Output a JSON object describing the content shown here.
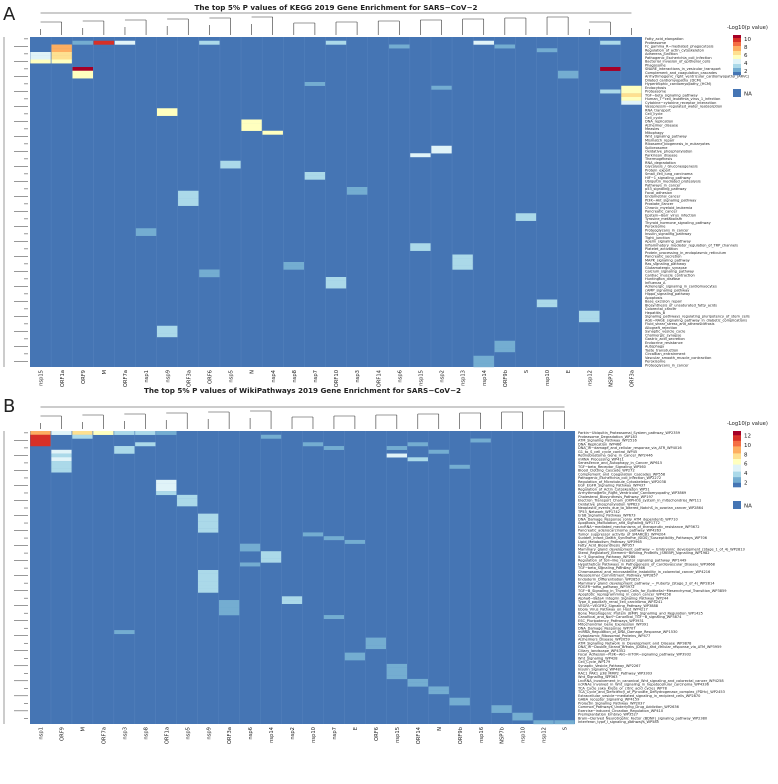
{
  "chart_data": [
    {
      "type": "heatmap",
      "panel": "A",
      "title": "The top 5% P values of KEGG 2019 Gene Enrichment for SARS−CoV−2",
      "columns": [
        "nsp15",
        "ORF1a",
        "ORF9",
        "M",
        "ORF7a",
        "nsp1",
        "nsp9",
        "ORF3a",
        "ORF6",
        "nsp5",
        "N",
        "nsp4",
        "nsp8",
        "nsp7",
        "ORF10",
        "nsp3",
        "ORF14",
        "nsp6",
        "nsp15",
        "nsp2",
        "nsp13",
        "nsp14",
        "ORF9b",
        "S",
        "nsp10",
        "E",
        "nsp12",
        "NSP7b",
        "ORF3a"
      ],
      "rows": [
        "Fatty_acid_elongation",
        "Proteasome",
        "Fc_gamma_R−mediated_phagocytosis",
        "Regulation_of_actin_cytoskeleton",
        "Adherens_junction",
        "Pathogenic_Escherichia_coli_infection",
        "Bacterial_invasion_of_epithelial_cells",
        "Phagosome",
        "SNARE_interactions_in_vesicular_transport",
        "Complement_and_coagulation_cascades",
        "Arrhythmogenic_right_ventricular_cardiomyopathy_(ARVC)",
        "Dilated_cardiomyopathy_(DCM)",
        "Hypertrophic_cardiomyopathy_(HCM)",
        "Endocytosis",
        "Proteasome",
        "TGF−beta_signaling_pathway",
        "Human_T−cell_leukemia_virus_1_infection",
        "Cytokine−cytokine_receptor_interaction",
        "Vasopressin−regulated_water_reabsorption",
        "RNA_transport",
        "Cell_cycle",
        "Cell_cycle",
        "DNA_replication",
        "Alzheimer_disease",
        "Measles",
        "Mitophagy",
        "Wnt_signaling_pathway",
        "Mismatch_repair",
        "Ribosome_biogenesis_in_eukaryotes",
        "Spliceosome",
        "Oxidative_phosphorylation",
        "Parkinson_disease",
        "Thermogenesis",
        "RNA_degradation",
        "Glycolysis_/_Gluconeogenesis",
        "Protein_export",
        "Small_cell_lung_carcinoma",
        "HIF−1_signaling_pathway",
        "Ubiquitin_mediated_proteolysis",
        "Pathways_in_cancer",
        "p53_signaling_pathway",
        "Focal_adhesion",
        "Endometrial_cancer",
        "PI3K−Akt_signaling_pathway",
        "Prostate_cancer",
        "Chronic_myeloid_leukemia",
        "Pancreatic_cancer",
        "Epstein−Barr_virus_infection",
        "Tyrosine_metabolism",
        "Thyroid_hormone_signaling_pathway",
        "Peroxisome",
        "Proteoglycans_in_cancer",
        "Insulin_signaling_pathway",
        "Tight_junction",
        "Apelin_signaling_pathway",
        "Inflammatory_mediator_regulation_of_TRP_channels",
        "Platelet_activation",
        "Protein_processing_in_endoplasmic_reticulum",
        "Pancreatic_secretion",
        "MAPK_signaling_pathway",
        "Ras_signaling_pathway",
        "Glutamatergic_synapse",
        "Calcium_signaling_pathway",
        "Cardiac_muscle_contraction",
        "Huntington_disease",
        "Influenza_A",
        "Adrenergic_signaling_in_cardiomyocytes",
        "cAMP_signaling_pathway",
        "Hippo_signaling_pathway",
        "Apoptosis",
        "Base_excision_repair",
        "Biosynthesis_of_unsaturated_fatty_acids",
        "Colorectal_cancer",
        "Hepatitis_B",
        "Signaling_pathways_regulating_pluripotency_of_stem_cells",
        "AGE−RAGE_signaling_pathway_in_diabetic_complications",
        "Fluid_shear_stress_and_atherosclerosis",
        "Allograft_rejection",
        "Synaptic_vesicle_cycle",
        "Cholinergic_synapse",
        "Gastric_acid_secretion",
        "Endocrine_resistance",
        "Autophagy",
        "Taste_transduction",
        "Circadian_entrainment",
        "Vascular_smooth_muscle_contraction",
        "Peroxisome",
        "Proteoglycans_in_cancer"
      ],
      "cells": [
        [
          0,
          3,
          1.5
        ],
        [
          1,
          3,
          1.5
        ],
        [
          2,
          3,
          1.5
        ],
        [
          3,
          3,
          1.5
        ],
        [
          2,
          1,
          8
        ],
        [
          3,
          1,
          8
        ],
        [
          4,
          1,
          7
        ],
        [
          5,
          1,
          6
        ],
        [
          6,
          1,
          5
        ],
        [
          4,
          0,
          4
        ],
        [
          5,
          0,
          4
        ],
        [
          6,
          0,
          5
        ],
        [
          1,
          3,
          10
        ],
        [
          1,
          4,
          4
        ],
        [
          1,
          2,
          2
        ],
        [
          1,
          8,
          3
        ],
        [
          1,
          14,
          3
        ],
        [
          1,
          21,
          4
        ],
        [
          1,
          27,
          3
        ],
        [
          8,
          2,
          11
        ],
        [
          9,
          2,
          5
        ],
        [
          10,
          2,
          5
        ],
        [
          8,
          27,
          11
        ],
        [
          9,
          25,
          2
        ],
        [
          10,
          25,
          2
        ],
        [
          13,
          28,
          5
        ],
        [
          14,
          28,
          5
        ],
        [
          15,
          28,
          6
        ],
        [
          16,
          28,
          5
        ],
        [
          17,
          28,
          4
        ],
        [
          14,
          27,
          3
        ],
        [
          19,
          6,
          5
        ],
        [
          20,
          6,
          5
        ],
        [
          22,
          10,
          5
        ],
        [
          23,
          10,
          5
        ],
        [
          24,
          10,
          5
        ],
        [
          25,
          11,
          5
        ],
        [
          29,
          19,
          4
        ],
        [
          30,
          19,
          4
        ],
        [
          31,
          18,
          4
        ],
        [
          33,
          9,
          3
        ],
        [
          34,
          9,
          3
        ],
        [
          36,
          13,
          3
        ],
        [
          37,
          13,
          3
        ],
        [
          41,
          7,
          3
        ],
        [
          42,
          7,
          3
        ],
        [
          43,
          7,
          3
        ],
        [
          44,
          7,
          3
        ],
        [
          47,
          23,
          3
        ],
        [
          48,
          23,
          3
        ],
        [
          51,
          5,
          2
        ],
        [
          52,
          5,
          2
        ],
        [
          55,
          18,
          3
        ],
        [
          56,
          18,
          3
        ],
        [
          58,
          20,
          3
        ],
        [
          59,
          20,
          3
        ],
        [
          60,
          20,
          3
        ],
        [
          61,
          20,
          3
        ],
        [
          64,
          14,
          3
        ],
        [
          65,
          14,
          3
        ],
        [
          66,
          14,
          3
        ],
        [
          70,
          24,
          3
        ],
        [
          71,
          24,
          3
        ],
        [
          73,
          26,
          3
        ],
        [
          74,
          26,
          3
        ],
        [
          75,
          26,
          3
        ],
        [
          77,
          6,
          3
        ],
        [
          78,
          6,
          3
        ],
        [
          79,
          6,
          3
        ],
        [
          81,
          22,
          2
        ],
        [
          82,
          22,
          2
        ],
        [
          83,
          22,
          2
        ],
        [
          85,
          21,
          2
        ],
        [
          86,
          21,
          2
        ],
        [
          87,
          21,
          2
        ],
        [
          60,
          12,
          2
        ],
        [
          61,
          12,
          2
        ],
        [
          40,
          15,
          2
        ],
        [
          41,
          15,
          2
        ],
        [
          12,
          13,
          2
        ],
        [
          13,
          19,
          2
        ],
        [
          2,
          17,
          2
        ],
        [
          2,
          22,
          2
        ],
        [
          3,
          24,
          2
        ],
        [
          62,
          8,
          2
        ],
        [
          63,
          8,
          2
        ]
      ],
      "legend_title": "-Log10(p value)",
      "legend_ticks": [
        "10",
        "8",
        "6",
        "4",
        "2"
      ],
      "legend_na": "NA"
    },
    {
      "type": "heatmap",
      "panel": "B",
      "title": "The top 5% P values of WikiPathways 2019 Gene Enrichment for SARS−CoV−2",
      "columns": [
        "nsp1",
        "ORF9",
        "M",
        "ORF7a",
        "nsp3",
        "nsp8",
        "ORF1a",
        "nsp5",
        "nsp9",
        "ORF3a",
        "nsp6",
        "nsp14",
        "nsp2",
        "nsp10",
        "nsp7",
        "E",
        "ORF6",
        "nsp15",
        "ORF14",
        "N",
        "ORF9b",
        "nsp16",
        "NSP7b",
        "nsp10",
        "nsp12",
        "S"
      ],
      "rows": [
        "Parkin−Ubiquitin_Proteasomal_System_pathway_WP2359",
        "Proteasome_Degradation_WP183",
        "ATM_Signaling_Pathway_WP2516",
        "DNA_Replication_WP466",
        "DNA_IR−damage_and_cellular_response_via_ATR_WP4016",
        "G1_to_S_cell_cycle_control_WP45",
        "Retinoblastoma_Gene_in_Cancer_WP2446",
        "mRNA_Processing_WP411",
        "Senescence_and_Autophagy_in_Cancer_WP615",
        "TGF−beta_Receptor_Signaling_WP560",
        "Blood_Clotting_Cascade_WP272",
        "Complement_and_Coagulation_Cascades_WP558",
        "Pathogenic_Escherichia_coli_infection_WP2272",
        "Regulation_of_Microtubule_Cytoskeleton_WP2038",
        "EGF_EGFR_Signaling_Pathway_WP437",
        "Regulation_of_Actin_Cytoskeleton_WP51",
        "Arrhythmogenic_Right_Ventricular_Cardiomyopathy_WP3869",
        "Cholesterol_Biosynthesis_Pathway_WP197",
        "Electron_Transport_Chain_(OXPHOS_system_in_mitochondria)_WP111",
        "Oxidative_phosphorylation_WP623",
        "Neoplastic_events_due_to_altered_NotchS_in_ovarian_cancer_WP2864",
        "TP53_Network_WP1742",
        "ErbB_Signaling_Pathway_WP673",
        "DNA_Damage_Response_(only_ATM_dependent)_WP710",
        "Apoptosis_Modulation_and_Signaling_WP1772",
        "LncRNA−mediated_mechanisms_of_therapeutic_resistance_WP3672",
        "Pancreatic_adenocarcinoma_pathway_WP4263",
        "Tumor_suppressor_activity_of_SMARCB1_WP4204",
        "Sudden_Infant_Death_Syndrome_(SIDS)_Susceptibility_Pathways_WP706",
        "Lipid_Metabolism_Pathway_WP3965",
        "Fatty_Acid_Biosynthesis_WP357",
        "Mammary_gland_development_pathway_−_Embryonic_development_(Stage_1_of_4)_WP2813",
        "Sterol_Regulatory_Element−Binding_Proteins_(SREBP)_signalling_WP1982",
        "IL−3_Signaling_Pathway_WP286",
        "Regulation_of_toll−like_receptor_signaling_pathway_WP1449",
        "Hypothetical_Pathways_in_Pathogenesis_of_Cardiovascular_Disease_WP3668",
        "TGF−beta_Signaling_Pathway_WP366",
        "Chromosomal_and_microsatellite_instability_in_colorectal_cancer_WP4216",
        "Mesodermal_Commitment_Pathway_WP2857",
        "Endoderm_Differentiation_WP2853",
        "Mammary_gland_development_pathway_−_Puberty_(Stage_2_of_4)_WP2814",
        "PDGFR−beta_pathway_WP3972",
        "TGF−B_Signaling_in_Thyroid_Cells_for_Epithelial−Mesenchymal_Transition_WP3859",
        "Apoptotic_reprogramming_in_colon_cancer_WP4258",
        "Alpha6−Beta4_Integrin_Signaling_Pathway_WP244",
        "Type_II_papillary_renal_cell_carcinoma_WP4241",
        "VEGFA−VEGFR2_Signaling_Pathway_WP3888",
        "Ebola_Virus_Pathway_on_Host_WP4217",
        "Bone_Morphogenic_Protein_(BMP)_Signalling_and_Regulation_WP1425",
        "Canonical_and_Non−Canonical_TGF−B_signaling_WP3874",
        "ESC_Pluripotency_Pathways_WP3931",
        "Mitochondrial_Gene_Expression_WP391",
        "DNA_Damage_Response_WP707",
        "miRNA_Regulation_of_DNA_Damage_Response_WP1530",
        "Cytoplasmic_Ribosomal_Proteins_WP477",
        "Alzheimers_Disease_WP2059",
        "ATM_Signaling_Network_in_Development_and_Disease_WP3878",
        "DNA_IR−Double_Strand_Breaks_(DSBs)_and_cellular_response_via_ATM_WP3959",
        "Ciliary_landscape_WP4352",
        "Focal_Adhesion−PI3K−Akt−mTOR−signaling_pathway_WP3932",
        "Wnt_Signaling_WP428",
        "Cell_Cycle_WP179",
        "Synaptic_Vesicle_Pathway_WP2267",
        "Insulin_Signaling_WP481",
        "RAC1_PAK1_p38_MMP2_Pathway_WP3303",
        "Wnt_Signaling_WP363",
        "LncRNA_involvement_in_canonical_Wnt_signaling_and_colorectal_cancer_WP4258",
        "ncRNAs_involved_in_Wnt_signaling_in_hepatocellular_carcinoma_WP4336",
        "TCA_Cycle_(aka_Krebs_or_citric_acid_cycle)_WP78",
        "TCA_Cycle_and_Deficiency_of_Pyruvate_Dehydrogenase_complex_(PDHc)_WP2453",
        "Extracellular_vesicle−mediated_signaling_in_recipient_cells_WP2870",
        "GABA_receptor_Signaling_WP4159",
        "Prolactin_Signaling_Pathway_WP2037",
        "Common_Pathways_Underlying_Drug_Addiction_WP2636",
        "Exercise−induced_Circadian_Regulation_WP410",
        "Preimplantation_Embryo_WP3527",
        "Brain−Derived_Neurotrophic_Factor_(BDNF)_signaling_pathway_WP2380",
        "Interferon_type_I_signaling_pathways_WP585"
      ],
      "cells": [
        [
          0,
          0,
          9
        ],
        [
          1,
          0,
          12
        ],
        [
          2,
          0,
          12
        ],
        [
          3,
          0,
          11
        ],
        [
          0,
          1,
          5
        ],
        [
          0,
          2,
          7
        ],
        [
          0,
          3,
          6
        ],
        [
          0,
          4,
          4
        ],
        [
          0,
          5,
          3
        ],
        [
          0,
          6,
          2
        ],
        [
          5,
          1,
          5
        ],
        [
          6,
          1,
          4
        ],
        [
          7,
          1,
          5
        ],
        [
          8,
          1,
          4
        ],
        [
          9,
          1,
          3
        ],
        [
          10,
          1,
          3
        ],
        [
          3,
          5,
          3
        ],
        [
          4,
          4,
          3
        ],
        [
          5,
          4,
          3
        ],
        [
          6,
          17,
          5
        ],
        [
          7,
          18,
          4
        ],
        [
          4,
          17,
          2
        ],
        [
          3,
          18,
          2
        ],
        [
          1,
          2,
          3
        ],
        [
          1,
          11,
          2
        ],
        [
          3,
          13,
          2
        ],
        [
          4,
          14,
          2
        ],
        [
          5,
          19,
          2
        ],
        [
          2,
          21,
          2
        ],
        [
          9,
          20,
          2
        ],
        [
          13,
          6,
          5
        ],
        [
          14,
          6,
          5
        ],
        [
          15,
          6,
          5
        ],
        [
          16,
          6,
          3
        ],
        [
          17,
          7,
          3
        ],
        [
          18,
          7,
          3
        ],
        [
          19,
          7,
          3
        ],
        [
          22,
          8,
          4
        ],
        [
          23,
          8,
          4
        ],
        [
          24,
          8,
          4
        ],
        [
          25,
          8,
          3
        ],
        [
          26,
          8,
          3
        ],
        [
          27,
          13,
          2
        ],
        [
          28,
          14,
          2
        ],
        [
          29,
          15,
          2
        ],
        [
          30,
          10,
          2
        ],
        [
          31,
          10,
          2
        ],
        [
          32,
          11,
          3
        ],
        [
          33,
          11,
          3
        ],
        [
          34,
          11,
          3
        ],
        [
          35,
          10,
          2
        ],
        [
          37,
          8,
          3
        ],
        [
          38,
          8,
          3
        ],
        [
          39,
          8,
          3
        ],
        [
          40,
          8,
          3
        ],
        [
          41,
          8,
          3
        ],
        [
          42,
          8,
          3
        ],
        [
          45,
          9,
          2
        ],
        [
          46,
          9,
          2
        ],
        [
          47,
          9,
          2
        ],
        [
          48,
          9,
          2
        ],
        [
          44,
          12,
          4
        ],
        [
          45,
          12,
          4
        ],
        [
          49,
          14,
          2
        ],
        [
          53,
          4,
          2
        ],
        [
          55,
          16,
          2
        ],
        [
          56,
          16,
          2
        ],
        [
          57,
          16,
          2
        ],
        [
          59,
          15,
          2
        ],
        [
          60,
          15,
          2
        ],
        [
          62,
          17,
          2
        ],
        [
          63,
          17,
          2
        ],
        [
          64,
          17,
          2
        ],
        [
          65,
          17,
          2
        ],
        [
          66,
          18,
          2
        ],
        [
          67,
          18,
          2
        ],
        [
          68,
          19,
          2
        ],
        [
          69,
          19,
          2
        ],
        [
          71,
          20,
          2
        ],
        [
          72,
          20,
          2
        ],
        [
          73,
          22,
          2
        ],
        [
          74,
          22,
          2
        ],
        [
          75,
          23,
          2
        ],
        [
          76,
          23,
          2
        ],
        [
          77,
          24,
          2
        ],
        [
          78,
          24,
          2
        ],
        [
          77,
          25,
          2
        ]
      ],
      "legend_title": "-Log10(p value)",
      "legend_ticks": [
        "12",
        "10",
        "8",
        "6",
        "4",
        "2"
      ],
      "legend_na": "NA"
    }
  ],
  "panel_labels": [
    "A",
    "B"
  ],
  "colors": {
    "base": "#4575b4",
    "grid": "#5b86c0",
    "scale": [
      "#4575b4",
      "#74add1",
      "#abd9e9",
      "#e0f3f8",
      "#ffffbf",
      "#fee090",
      "#fdae61",
      "#f46d43",
      "#d73027",
      "#a50026"
    ]
  }
}
